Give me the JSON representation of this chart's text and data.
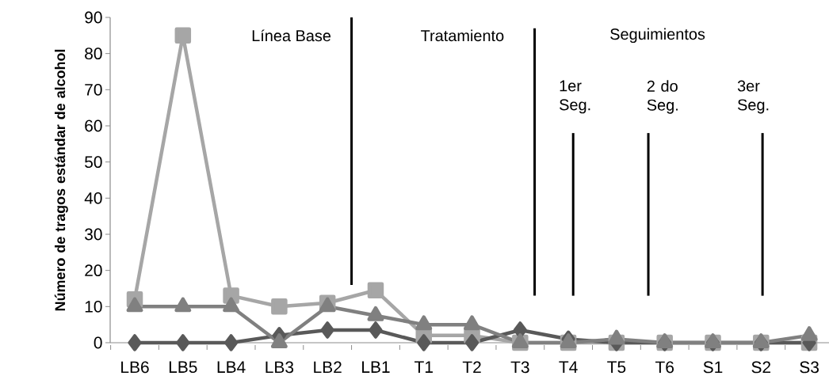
{
  "chart_data": {
    "type": "line",
    "ylabel": "Número de tragos estándar de alcohol",
    "categories": [
      "LB6",
      "LB5",
      "LB4",
      "LB3",
      "LB2",
      "LB1",
      "T1",
      "T2",
      "T3",
      "T4",
      "T5",
      "T6",
      "S1",
      "S2",
      "S3"
    ],
    "series": [
      {
        "color": "#a6a6a6",
        "marker": "square",
        "values": [
          12,
          85,
          13,
          10,
          11,
          14.5,
          2,
          2,
          0,
          0,
          0,
          0,
          0,
          0,
          0
        ]
      },
      {
        "color": "#595959",
        "marker": "diamond",
        "values": [
          0,
          0,
          0,
          2,
          3.5,
          3.5,
          0,
          0,
          3.5,
          1,
          0,
          0,
          0,
          0,
          0
        ]
      },
      {
        "color": "#808080",
        "marker": "triangle",
        "values": [
          10,
          10,
          10,
          0,
          10,
          7.5,
          5,
          5,
          0,
          0,
          1,
          0,
          0,
          0,
          2
        ]
      }
    ],
    "ylim": [
      0,
      90
    ],
    "yticks": [
      0,
      10,
      20,
      30,
      40,
      50,
      60,
      70,
      80,
      90
    ],
    "line_style": "solid",
    "annotations": [
      "Línea Base",
      "Tratamiento",
      "Seguimientos",
      "1er Seg.",
      "2 do Seg.",
      "3er Seg."
    ]
  }
}
